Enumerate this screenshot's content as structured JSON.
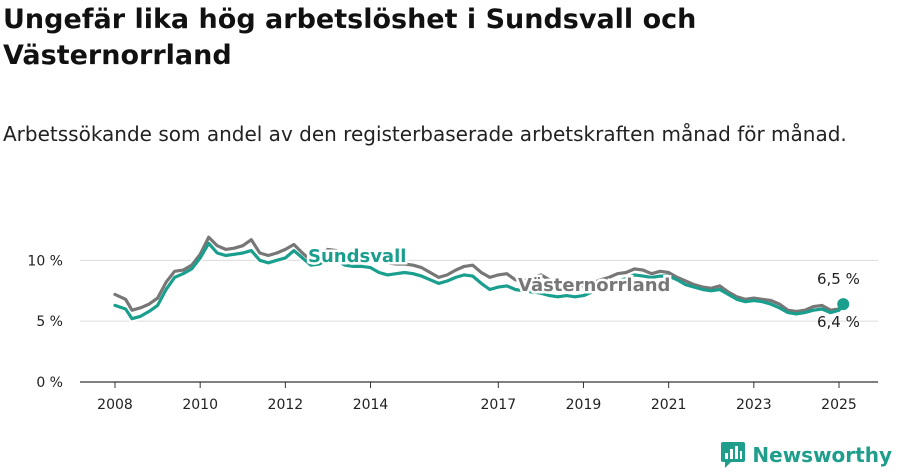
{
  "title": "Ungefär lika hög arbetslöshet i Sundsvall och Västernorrland",
  "subtitle": "Arbetssökande som andel av den registerbaserade arbetskraften månad för månad.",
  "brand": {
    "name": "Newsworthy",
    "icon": "newsworthy-logo-icon"
  },
  "colors": {
    "sundsvall": "#1a9e8d",
    "vasternorrland": "#777777",
    "grid": "#dcdcdc",
    "axis": "#333333"
  },
  "chart_data": {
    "type": "line",
    "xlabel": "",
    "ylabel": "",
    "ylim": [
      0,
      12
    ],
    "yticks": [
      {
        "value": 0,
        "label": "0 %"
      },
      {
        "value": 5,
        "label": "5 %"
      },
      {
        "value": 10,
        "label": "10 %"
      }
    ],
    "xticks": [
      {
        "value": 2008,
        "label": "2008"
      },
      {
        "value": 2010,
        "label": "2010"
      },
      {
        "value": 2012,
        "label": "2012"
      },
      {
        "value": 2014,
        "label": "2014"
      },
      {
        "value": 2017,
        "label": "2017"
      },
      {
        "value": 2019,
        "label": "2019"
      },
      {
        "value": 2021,
        "label": "2021"
      },
      {
        "value": 2023,
        "label": "2023"
      },
      {
        "value": 2025,
        "label": "2025"
      }
    ],
    "grid": "horizontal",
    "end_labels": {
      "vasternorrland": "6,5 %",
      "sundsvall": "6,4 %"
    },
    "series": [
      {
        "name": "Västernorrland",
        "key": "vasternorrland",
        "points": [
          [
            2008.0,
            7.2
          ],
          [
            2008.25,
            6.8
          ],
          [
            2008.4,
            5.9
          ],
          [
            2008.6,
            6.1
          ],
          [
            2008.8,
            6.4
          ],
          [
            2009.0,
            6.9
          ],
          [
            2009.2,
            8.2
          ],
          [
            2009.4,
            9.1
          ],
          [
            2009.6,
            9.2
          ],
          [
            2009.8,
            9.6
          ],
          [
            2010.0,
            10.5
          ],
          [
            2010.2,
            11.9
          ],
          [
            2010.4,
            11.2
          ],
          [
            2010.6,
            10.9
          ],
          [
            2010.8,
            11.0
          ],
          [
            2011.0,
            11.2
          ],
          [
            2011.2,
            11.7
          ],
          [
            2011.4,
            10.6
          ],
          [
            2011.6,
            10.4
          ],
          [
            2011.8,
            10.6
          ],
          [
            2012.0,
            10.9
          ],
          [
            2012.2,
            11.3
          ],
          [
            2012.4,
            10.6
          ],
          [
            2012.6,
            10.0
          ],
          [
            2012.8,
            10.3
          ],
          [
            2013.0,
            10.9
          ],
          [
            2013.2,
            10.8
          ],
          [
            2013.4,
            10.5
          ],
          [
            2013.6,
            10.4
          ],
          [
            2013.8,
            10.6
          ],
          [
            2014.0,
            10.6
          ],
          [
            2014.2,
            10.1
          ],
          [
            2014.4,
            9.8
          ],
          [
            2014.6,
            9.7
          ],
          [
            2014.8,
            9.7
          ],
          [
            2015.0,
            9.6
          ],
          [
            2015.2,
            9.4
          ],
          [
            2015.4,
            9.0
          ],
          [
            2015.6,
            8.6
          ],
          [
            2015.8,
            8.8
          ],
          [
            2016.0,
            9.2
          ],
          [
            2016.2,
            9.5
          ],
          [
            2016.4,
            9.6
          ],
          [
            2016.6,
            9.0
          ],
          [
            2016.8,
            8.6
          ],
          [
            2017.0,
            8.8
          ],
          [
            2017.2,
            8.9
          ],
          [
            2017.4,
            8.4
          ],
          [
            2017.6,
            8.3
          ],
          [
            2017.8,
            8.6
          ],
          [
            2018.0,
            8.8
          ],
          [
            2018.2,
            8.4
          ],
          [
            2018.4,
            8.1
          ],
          [
            2018.6,
            8.0
          ],
          [
            2018.8,
            7.9
          ],
          [
            2019.0,
            7.9
          ],
          [
            2019.2,
            8.1
          ],
          [
            2019.4,
            8.4
          ],
          [
            2019.6,
            8.6
          ],
          [
            2019.8,
            8.9
          ],
          [
            2020.0,
            9.0
          ],
          [
            2020.2,
            9.3
          ],
          [
            2020.4,
            9.2
          ],
          [
            2020.6,
            8.9
          ],
          [
            2020.8,
            9.1
          ],
          [
            2021.0,
            9.0
          ],
          [
            2021.2,
            8.6
          ],
          [
            2021.4,
            8.3
          ],
          [
            2021.6,
            8.0
          ],
          [
            2021.8,
            7.8
          ],
          [
            2022.0,
            7.7
          ],
          [
            2022.2,
            7.9
          ],
          [
            2022.4,
            7.4
          ],
          [
            2022.6,
            7.0
          ],
          [
            2022.8,
            6.8
          ],
          [
            2023.0,
            6.9
          ],
          [
            2023.2,
            6.8
          ],
          [
            2023.4,
            6.7
          ],
          [
            2023.6,
            6.4
          ],
          [
            2023.8,
            5.9
          ],
          [
            2024.0,
            5.8
          ],
          [
            2024.2,
            5.9
          ],
          [
            2024.4,
            6.2
          ],
          [
            2024.6,
            6.3
          ],
          [
            2024.8,
            5.9
          ],
          [
            2025.0,
            6.0
          ],
          [
            2025.1,
            6.5
          ]
        ]
      },
      {
        "name": "Sundsvall",
        "key": "sundsvall",
        "points": [
          [
            2008.0,
            6.3
          ],
          [
            2008.25,
            6.0
          ],
          [
            2008.4,
            5.2
          ],
          [
            2008.6,
            5.4
          ],
          [
            2008.8,
            5.8
          ],
          [
            2009.0,
            6.3
          ],
          [
            2009.2,
            7.6
          ],
          [
            2009.4,
            8.6
          ],
          [
            2009.6,
            8.9
          ],
          [
            2009.8,
            9.3
          ],
          [
            2010.0,
            10.2
          ],
          [
            2010.2,
            11.4
          ],
          [
            2010.4,
            10.6
          ],
          [
            2010.6,
            10.4
          ],
          [
            2010.8,
            10.5
          ],
          [
            2011.0,
            10.6
          ],
          [
            2011.2,
            10.8
          ],
          [
            2011.4,
            10.0
          ],
          [
            2011.6,
            9.8
          ],
          [
            2011.8,
            10.0
          ],
          [
            2012.0,
            10.2
          ],
          [
            2012.2,
            10.8
          ],
          [
            2012.4,
            10.2
          ],
          [
            2012.6,
            9.6
          ],
          [
            2012.8,
            9.7
          ],
          [
            2013.0,
            10.1
          ],
          [
            2013.2,
            10.0
          ],
          [
            2013.4,
            9.6
          ],
          [
            2013.6,
            9.5
          ],
          [
            2013.8,
            9.5
          ],
          [
            2014.0,
            9.4
          ],
          [
            2014.2,
            9.0
          ],
          [
            2014.4,
            8.8
          ],
          [
            2014.6,
            8.9
          ],
          [
            2014.8,
            9.0
          ],
          [
            2015.0,
            8.9
          ],
          [
            2015.2,
            8.7
          ],
          [
            2015.4,
            8.4
          ],
          [
            2015.6,
            8.1
          ],
          [
            2015.8,
            8.3
          ],
          [
            2016.0,
            8.6
          ],
          [
            2016.2,
            8.8
          ],
          [
            2016.4,
            8.7
          ],
          [
            2016.6,
            8.1
          ],
          [
            2016.8,
            7.6
          ],
          [
            2017.0,
            7.8
          ],
          [
            2017.2,
            7.9
          ],
          [
            2017.4,
            7.6
          ],
          [
            2017.6,
            7.5
          ],
          [
            2017.8,
            7.4
          ],
          [
            2018.0,
            7.3
          ],
          [
            2018.2,
            7.1
          ],
          [
            2018.4,
            7.0
          ],
          [
            2018.6,
            7.1
          ],
          [
            2018.8,
            7.0
          ],
          [
            2019.0,
            7.1
          ],
          [
            2019.2,
            7.4
          ],
          [
            2019.4,
            7.8
          ],
          [
            2019.6,
            8.0
          ],
          [
            2019.8,
            8.3
          ],
          [
            2020.0,
            8.5
          ],
          [
            2020.2,
            8.8
          ],
          [
            2020.4,
            8.7
          ],
          [
            2020.6,
            8.6
          ],
          [
            2020.8,
            8.7
          ],
          [
            2021.0,
            8.7
          ],
          [
            2021.2,
            8.4
          ],
          [
            2021.4,
            8.0
          ],
          [
            2021.6,
            7.8
          ],
          [
            2021.8,
            7.6
          ],
          [
            2022.0,
            7.5
          ],
          [
            2022.2,
            7.6
          ],
          [
            2022.4,
            7.2
          ],
          [
            2022.6,
            6.8
          ],
          [
            2022.8,
            6.6
          ],
          [
            2023.0,
            6.7
          ],
          [
            2023.2,
            6.6
          ],
          [
            2023.4,
            6.4
          ],
          [
            2023.6,
            6.1
          ],
          [
            2023.8,
            5.7
          ],
          [
            2024.0,
            5.6
          ],
          [
            2024.2,
            5.7
          ],
          [
            2024.4,
            5.9
          ],
          [
            2024.6,
            6.0
          ],
          [
            2024.8,
            5.7
          ],
          [
            2025.0,
            5.9
          ],
          [
            2025.1,
            6.4
          ]
        ]
      }
    ]
  }
}
